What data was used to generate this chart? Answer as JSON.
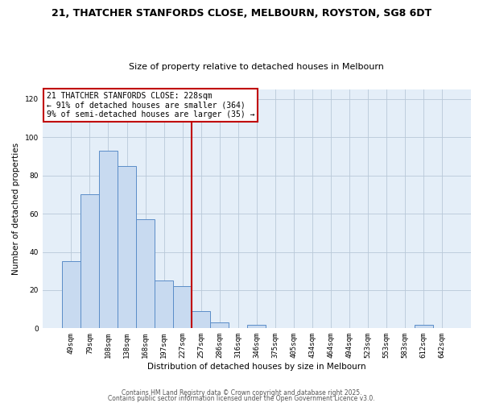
{
  "title": "21, THATCHER STANFORDS CLOSE, MELBOURN, ROYSTON, SG8 6DT",
  "subtitle": "Size of property relative to detached houses in Melbourn",
  "xlabel": "Distribution of detached houses by size in Melbourn",
  "ylabel": "Number of detached properties",
  "bar_labels": [
    "49sqm",
    "79sqm",
    "108sqm",
    "138sqm",
    "168sqm",
    "197sqm",
    "227sqm",
    "257sqm",
    "286sqm",
    "316sqm",
    "346sqm",
    "375sqm",
    "405sqm",
    "434sqm",
    "464sqm",
    "494sqm",
    "523sqm",
    "553sqm",
    "583sqm",
    "612sqm",
    "642sqm"
  ],
  "bar_values": [
    35,
    70,
    93,
    85,
    57,
    25,
    22,
    9,
    3,
    0,
    2,
    0,
    0,
    0,
    0,
    0,
    0,
    0,
    0,
    2,
    0
  ],
  "bar_color": "#c8daf0",
  "bar_edge_color": "#5b8dc8",
  "vline_x_index": 6.5,
  "vline_color": "#c00000",
  "ylim": [
    0,
    125
  ],
  "yticks": [
    0,
    20,
    40,
    60,
    80,
    100,
    120
  ],
  "annotation_line1": "21 THATCHER STANFORDS CLOSE: 228sqm",
  "annotation_line2": "← 91% of detached houses are smaller (364)",
  "annotation_line3": "9% of semi-detached houses are larger (35) →",
  "footer1": "Contains HM Land Registry data © Crown copyright and database right 2025.",
  "footer2": "Contains public sector information licensed under the Open Government Licence v3.0.",
  "background_color": "#ffffff",
  "axes_bg_color": "#e4eef8",
  "grid_color": "#b8c8d8",
  "title_fontsize": 9,
  "subtitle_fontsize": 8,
  "axis_label_fontsize": 7.5,
  "tick_fontsize": 6.5,
  "annotation_fontsize": 7,
  "footer_fontsize": 5.5
}
